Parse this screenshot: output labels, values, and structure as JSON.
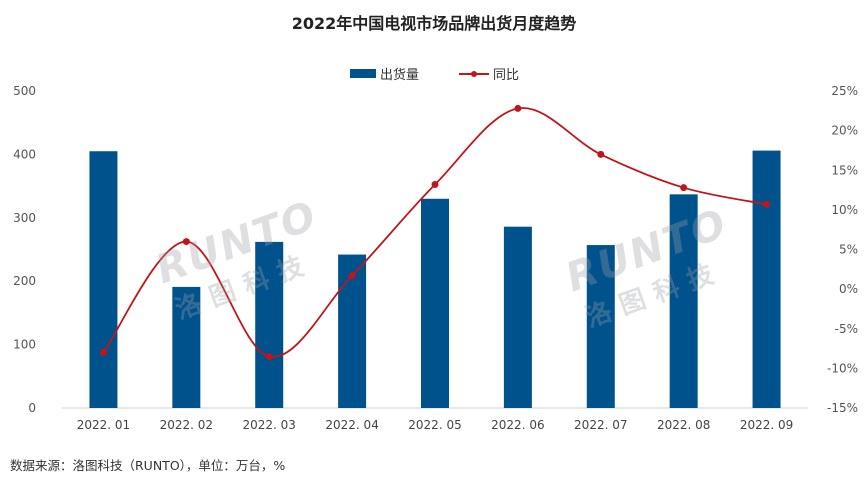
{
  "chart_data": {
    "type": "bar",
    "title": "2022年中国电视市场品牌出货月度趋势",
    "categories": [
      "2022. 01",
      "2022. 02",
      "2022. 03",
      "2022. 04",
      "2022. 05",
      "2022. 06",
      "2022. 07",
      "2022. 08",
      "2022. 09"
    ],
    "series": [
      {
        "name": "出货量",
        "type": "bar",
        "axis": "left",
        "color": "#00528c",
        "values": [
          405,
          191,
          262,
          242,
          330,
          286,
          257,
          337,
          406
        ]
      },
      {
        "name": "同比",
        "type": "line",
        "axis": "right",
        "color": "#c0161b",
        "values": [
          -8.0,
          6.0,
          -8.5,
          1.7,
          13.2,
          22.8,
          17.0,
          12.8,
          10.7
        ]
      }
    ],
    "ylim": [
      0,
      500
    ],
    "yticks": [
      "0",
      "100",
      "200",
      "300",
      "400",
      "500"
    ],
    "y2lim": [
      -15,
      25
    ],
    "y2ticks": [
      "-15%",
      "-10%",
      "-5%",
      "0%",
      "5%",
      "10%",
      "15%",
      "20%",
      "25%"
    ],
    "legend_position": "top-center",
    "grid": false
  },
  "watermark": {
    "text_en": "RUNTO",
    "text_cn": "洛图科技"
  },
  "source_note": "数据来源：洛图科技（RUNTO），单位：万台，%"
}
